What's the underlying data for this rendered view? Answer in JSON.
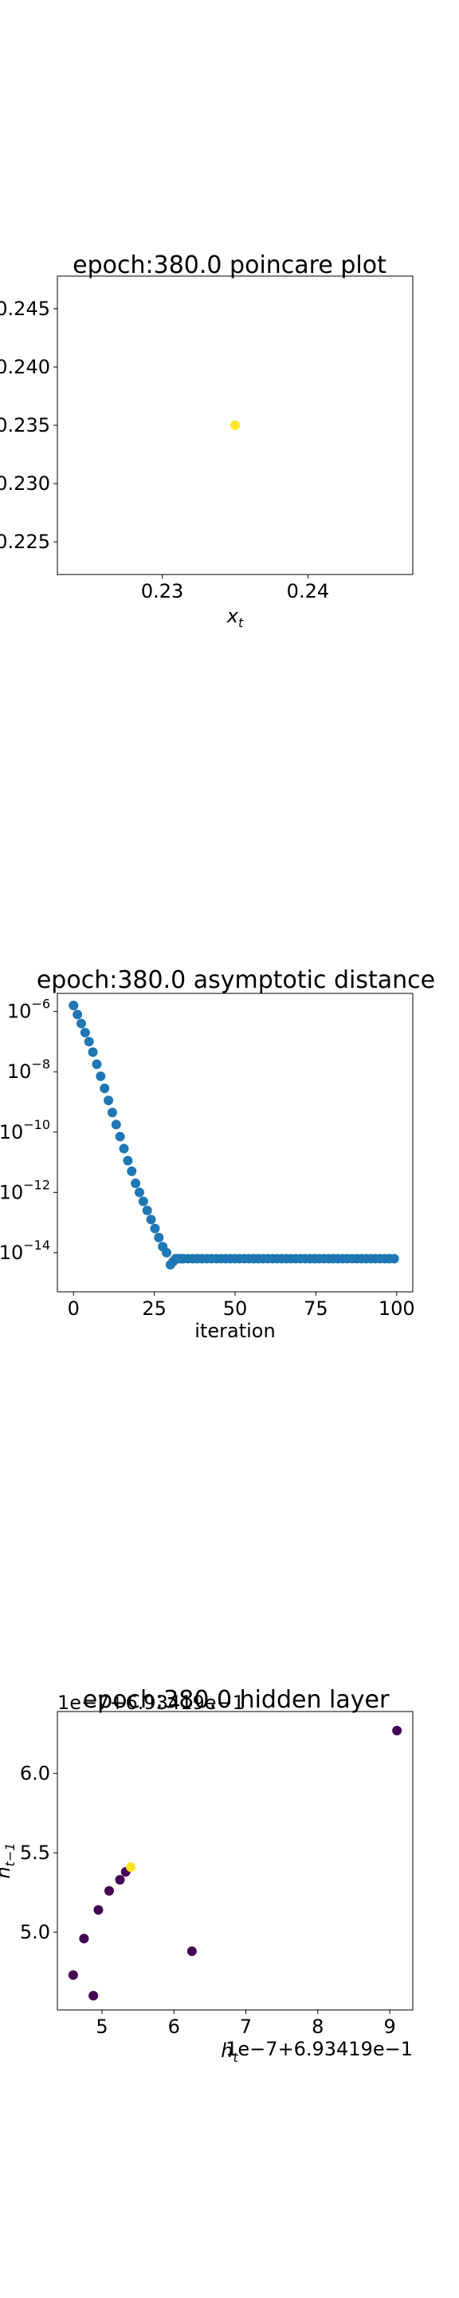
{
  "chart_data": [
    {
      "type": "scatter",
      "title": "epoch:380.0 poincare plot",
      "xlabel": "x_t",
      "ylabel": "",
      "xlim": [
        0.2228,
        0.2472
      ],
      "ylim": [
        0.2222,
        0.2478
      ],
      "xticks": [
        "0.23",
        "0.24"
      ],
      "yticks": [
        "0.225",
        "0.230",
        "0.235",
        "0.240",
        "0.245"
      ],
      "color": "#fde725",
      "points": [
        {
          "x": 0.235,
          "y": 0.235
        }
      ]
    },
    {
      "type": "scatter",
      "title": "epoch:380.0 asymptotic distance",
      "xlabel": "iteration",
      "ylabel": "",
      "yscale": "log",
      "xlim": [
        -5,
        105
      ],
      "ylim_log10": [
        -15.3,
        -5.4
      ],
      "xticks": [
        "0",
        "25",
        "50",
        "75",
        "100"
      ],
      "yticks": [
        {
          "mant": "10",
          "exp": "−6"
        },
        {
          "mant": "10",
          "exp": "−8"
        },
        {
          "mant": "10",
          "exp": "−10"
        },
        {
          "mant": "10",
          "exp": "−12"
        },
        {
          "mant": "10",
          "exp": "−14"
        }
      ],
      "color": "#1f77b4",
      "series": [
        {
          "x_start": 0,
          "log10_y": [
            -5.8,
            -6.1,
            -6.4,
            -6.7,
            -7.0,
            -7.35,
            -7.75,
            -8.15,
            -8.55,
            -8.95,
            -9.35,
            -9.75,
            -10.15,
            -10.55,
            -10.95,
            -11.3,
            -11.7,
            -12.0,
            -12.3,
            -12.6,
            -12.9,
            -13.2,
            -13.5,
            -13.8,
            -14.0,
            -14.4,
            -14.3,
            -14.2,
            -14.2,
            -14.2,
            -14.2,
            -14.2,
            -14.2,
            -14.2,
            -14.2,
            -14.2,
            -14.2,
            -14.2,
            -14.2,
            -14.2,
            -14.2,
            -14.2,
            -14.2,
            -14.2,
            -14.2,
            -14.2,
            -14.2,
            -14.2,
            -14.2,
            -14.2,
            -14.2,
            -14.2,
            -14.2,
            -14.2,
            -14.2,
            -14.2,
            -14.2,
            -14.2,
            -14.2,
            -14.2,
            -14.2,
            -14.2,
            -14.2,
            -14.2,
            -14.2,
            -14.2,
            -14.2,
            -14.2,
            -14.2,
            -14.2,
            -14.2,
            -14.2,
            -14.2,
            -14.2,
            -14.2,
            -14.2,
            -14.2
          ],
          "x_step": 1,
          "x_offset": 0,
          "note": ""
        }
      ]
    },
    {
      "type": "scatter",
      "title": "epoch:380.0 hidden layer",
      "xlabel": "h_t",
      "ylabel": "h_{t−1}",
      "x_offset_text": "1e−7+6.93419e−1",
      "y_offset_text": "1e−7+6.93419e−1",
      "xlim": [
        4.38,
        9.32
      ],
      "ylim": [
        4.51,
        6.39
      ],
      "xticks": [
        "5",
        "6",
        "7",
        "8",
        "9"
      ],
      "yticks": [
        "5.0",
        "5.5",
        "6.0"
      ],
      "colors": {
        "start": "#440154",
        "end": "#fde725"
      },
      "points": [
        {
          "x": 9.1,
          "y": 6.27
        },
        {
          "x": 4.6,
          "y": 4.73
        },
        {
          "x": 4.75,
          "y": 4.96
        },
        {
          "x": 4.95,
          "y": 5.14
        },
        {
          "x": 5.1,
          "y": 5.26
        },
        {
          "x": 5.25,
          "y": 5.33
        },
        {
          "x": 5.33,
          "y": 5.38
        },
        {
          "x": 6.25,
          "y": 4.88
        },
        {
          "x": 4.88,
          "y": 4.6
        },
        {
          "x": 5.4,
          "y": 5.41
        }
      ]
    }
  ]
}
